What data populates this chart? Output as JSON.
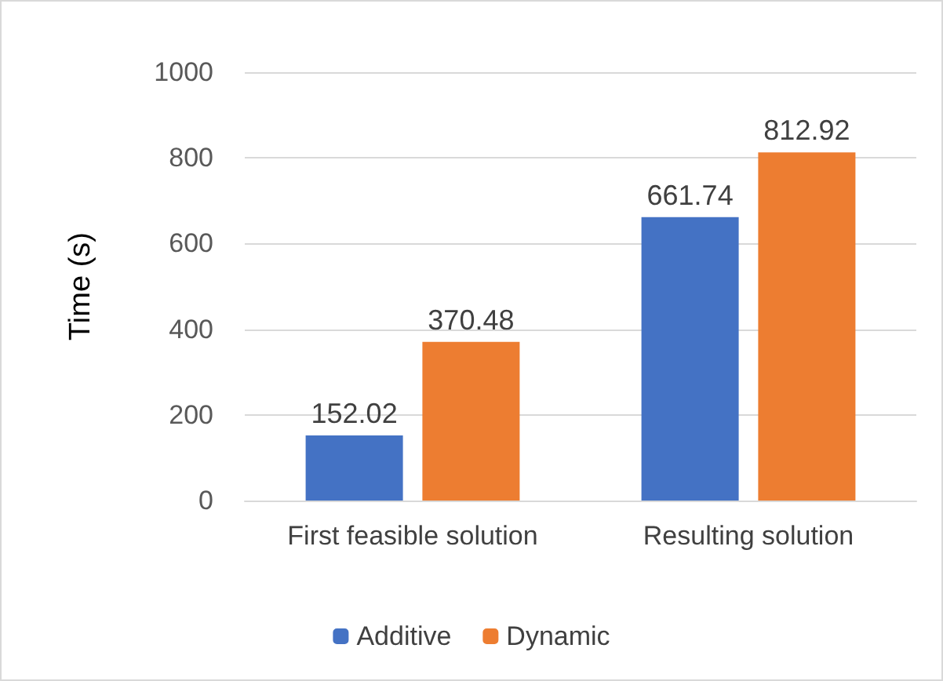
{
  "chart_data": {
    "type": "bar",
    "ylabel": "Time (s)",
    "categories": [
      "First feasible solution",
      "Resulting solution"
    ],
    "series": [
      {
        "name": "Additive",
        "color": "#4472c4",
        "values": [
          152.02,
          661.74
        ]
      },
      {
        "name": "Dynamic",
        "color": "#ed7d31",
        "values": [
          370.48,
          812.92
        ]
      }
    ],
    "ylim": [
      0,
      1000
    ],
    "yticks": [
      0,
      200,
      400,
      600,
      800,
      1000
    ],
    "grid": "y",
    "legend": "bottom",
    "data_labels": true
  }
}
